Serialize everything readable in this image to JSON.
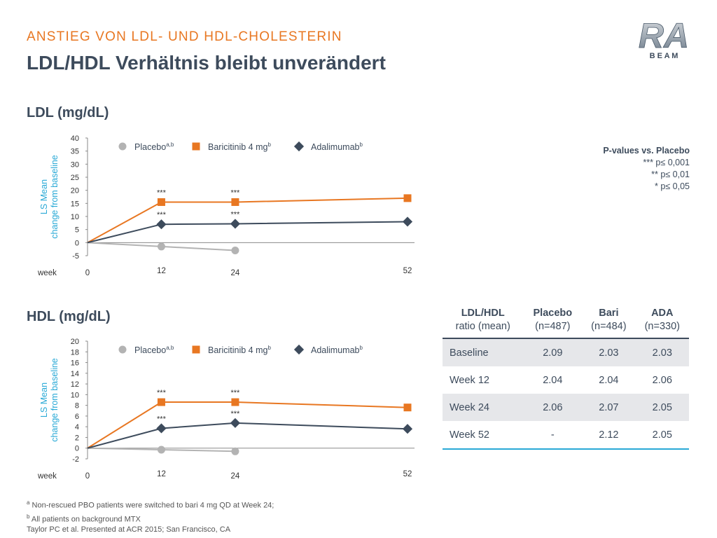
{
  "header": {
    "super_title": "ANSTIEG VON LDL- UND HDL-CHOLESTERIN",
    "title": "LDL/HDL Verhältnis bleibt unverändert"
  },
  "logo": {
    "top": "RA",
    "bottom": "B E A M"
  },
  "colors": {
    "accent": "#e87722",
    "title": "#3d4b5c",
    "axis_label": "#29a9d6",
    "placebo": "#b3b3b3",
    "baricitinib": "#e87722",
    "adalimumab": "#3d4b5c",
    "table_shade": "#e6e7ea",
    "table_bottom_rule": "#29a9d6"
  },
  "pvalues": {
    "title": "P-values vs. Placebo",
    "lines": [
      "*** p≤ 0,001",
      "** p≤ 0,01",
      "* p≤ 0,05"
    ]
  },
  "legend": [
    {
      "name": "Placebo",
      "sup": "a,b",
      "marker": "circle"
    },
    {
      "name": "Baricitinib 4 mg",
      "sup": "b",
      "marker": "square"
    },
    {
      "name": "Adalimumab",
      "sup": "b",
      "marker": "diamond"
    }
  ],
  "chart_data": [
    {
      "type": "line",
      "title": "LDL (mg/dL)",
      "ylabel": [
        "LS Mean",
        "change from baseline"
      ],
      "xlabel": "week",
      "x": [
        0,
        12,
        24,
        52
      ],
      "ylim": [
        -5,
        40
      ],
      "yticks": [
        -5,
        0,
        5,
        10,
        15,
        20,
        25,
        30,
        35,
        40
      ],
      "series": [
        {
          "name": "Placebo",
          "values": [
            0,
            -1.5,
            -3,
            null
          ]
        },
        {
          "name": "Baricitinib 4 mg",
          "values": [
            0,
            15.5,
            15.5,
            17
          ],
          "annotations": [
            null,
            "***",
            "***",
            null
          ]
        },
        {
          "name": "Adalimumab",
          "values": [
            0,
            7,
            7.2,
            8
          ],
          "annotations": [
            null,
            "***",
            "***",
            null
          ]
        }
      ]
    },
    {
      "type": "line",
      "title": "HDL (mg/dL)",
      "ylabel": [
        "LS Mean",
        "change from baseline"
      ],
      "xlabel": "week",
      "x": [
        0,
        12,
        24,
        52
      ],
      "ylim": [
        -2,
        20
      ],
      "yticks": [
        -2,
        0,
        2,
        4,
        6,
        8,
        10,
        12,
        14,
        16,
        18,
        20
      ],
      "series": [
        {
          "name": "Placebo",
          "values": [
            0,
            -0.3,
            -0.6,
            null
          ]
        },
        {
          "name": "Baricitinib 4 mg",
          "values": [
            0,
            8.6,
            8.6,
            7.6
          ],
          "annotations": [
            null,
            "***",
            "***",
            null
          ]
        },
        {
          "name": "Adalimumab",
          "values": [
            0,
            3.7,
            4.7,
            3.6
          ],
          "annotations": [
            null,
            "***",
            "***",
            null
          ]
        }
      ]
    }
  ],
  "ratio_table": {
    "headers": [
      {
        "bold": "LDL/HDL",
        "rest": "ratio (mean)"
      },
      {
        "bold": "Placebo",
        "rest": "(n=487)"
      },
      {
        "bold": "Bari",
        "rest": "(n=484)"
      },
      {
        "bold": "ADA",
        "rest": "(n=330)"
      }
    ],
    "rows": [
      {
        "label": "Baseline",
        "values": [
          "2.09",
          "2.03",
          "2.03"
        ]
      },
      {
        "label": "Week 12",
        "values": [
          "2.04",
          "2.04",
          "2.06"
        ]
      },
      {
        "label": "Week 24",
        "values": [
          "2.06",
          "2.07",
          "2.05"
        ]
      },
      {
        "label": "Week 52",
        "values": [
          "-",
          "2.12",
          "2.05"
        ]
      }
    ]
  },
  "footnotes": [
    {
      "sup": "a",
      "text": "Non-rescued PBO patients were switched to bari 4 mg QD at Week 24;"
    },
    {
      "sup": "b",
      "text": "All patients on background MTX"
    },
    {
      "sup": "",
      "text": "Taylor  PC et al. Presented at ACR 2015; San Francisco, CA"
    }
  ]
}
